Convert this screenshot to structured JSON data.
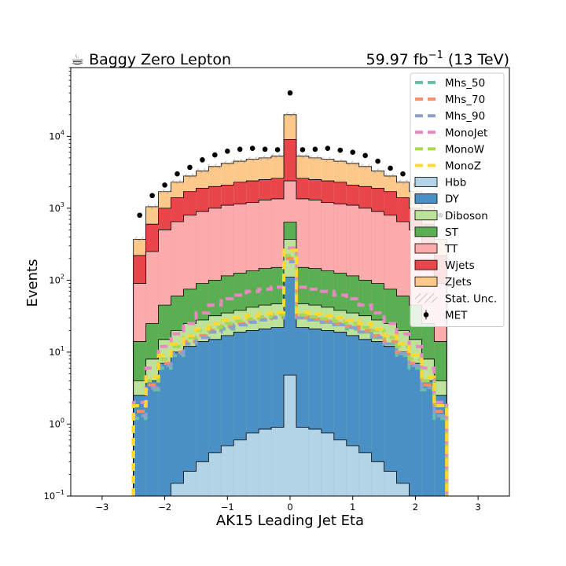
{
  "header": {
    "left_title": "☕ Baggy Zero Lepton",
    "right_title_value": "59.97 fb",
    "right_title_exp": "−1",
    "right_title_energy": " (13 TeV)"
  },
  "chart_data": {
    "type": "bar",
    "xlabel": "AK15 Leading Jet Eta",
    "ylabel": "Events",
    "xlim": [
      -3.5,
      3.5
    ],
    "ylim": [
      0.1,
      90000
    ],
    "yscale": "log",
    "x_ticks": [
      "−3",
      "−2",
      "−1",
      "0",
      "1",
      "2",
      "3"
    ],
    "y_ticks": [
      {
        "value": 0.1,
        "base": "10",
        "exp": "−1"
      },
      {
        "value": 1,
        "base": "10",
        "exp": "0"
      },
      {
        "value": 10,
        "base": "10",
        "exp": "1"
      },
      {
        "value": 100,
        "base": "10",
        "exp": "2"
      },
      {
        "value": 1000,
        "base": "10",
        "exp": "3"
      },
      {
        "value": 10000,
        "base": "10",
        "exp": "4"
      }
    ],
    "bin_edges": [
      -2.5,
      -2.3,
      -2.1,
      -1.9,
      -1.7,
      -1.5,
      -1.3,
      -1.1,
      -0.9,
      -0.7,
      -0.5,
      -0.3,
      -0.1,
      0.1,
      0.3,
      0.5,
      0.7,
      0.9,
      1.1,
      1.3,
      1.5,
      1.7,
      1.9,
      2.1,
      2.3,
      2.5
    ],
    "stack_order": [
      "Hbb",
      "DY",
      "Diboson",
      "ST",
      "TT",
      "Wjets",
      "ZJets"
    ],
    "stack_cumulative": {
      "Hbb": [
        0.1,
        0.1,
        0.1,
        0.15,
        0.22,
        0.3,
        0.4,
        0.5,
        0.6,
        0.75,
        0.85,
        0.9,
        4.8,
        0.9,
        0.85,
        0.75,
        0.6,
        0.5,
        0.4,
        0.3,
        0.22,
        0.15,
        0.1,
        0.1,
        0.1
      ],
      "DY": [
        2.5,
        4,
        7,
        10,
        12,
        14,
        15,
        17,
        19,
        20,
        21,
        22,
        110,
        22,
        21,
        20,
        19,
        17,
        15,
        14,
        12,
        10,
        7,
        4,
        2.5
      ],
      "Diboson": [
        4,
        8,
        15,
        20,
        25,
        28,
        32,
        35,
        38,
        42,
        45,
        47,
        370,
        47,
        45,
        42,
        38,
        35,
        32,
        28,
        25,
        20,
        15,
        8,
        4
      ],
      "ST": [
        14,
        25,
        45,
        60,
        75,
        90,
        100,
        115,
        125,
        135,
        145,
        150,
        640,
        150,
        145,
        135,
        125,
        115,
        100,
        90,
        75,
        60,
        45,
        25,
        14
      ],
      "TT": [
        90,
        250,
        500,
        650,
        800,
        900,
        1000,
        1100,
        1150,
        1200,
        1300,
        1350,
        2400,
        1350,
        1300,
        1200,
        1150,
        1100,
        1000,
        900,
        800,
        650,
        500,
        250,
        90
      ],
      "Wjets": [
        220,
        600,
        1000,
        1400,
        1700,
        1900,
        2000,
        2100,
        2300,
        2400,
        2500,
        2600,
        9000,
        2600,
        2500,
        2400,
        2300,
        2100,
        2000,
        1900,
        1700,
        1400,
        1000,
        600,
        220
      ],
      "ZJets": [
        370,
        1050,
        1700,
        2300,
        2800,
        3300,
        3800,
        4200,
        4500,
        4800,
        5000,
        5300,
        20000,
        5300,
        5000,
        4800,
        4500,
        4200,
        3800,
        3300,
        2800,
        2300,
        1700,
        1050,
        370
      ]
    },
    "stack_colors": {
      "Hbb": "#b3d4e6",
      "DY": "#4a90c4",
      "Diboson": "#bde39b",
      "ST": "#5aaf52",
      "TT": "#fbabac",
      "Wjets": "#e9464c",
      "ZJets": "#fdc98b"
    },
    "signal_series": [
      {
        "name": "Mhs_50",
        "color": "#66c2a5",
        "values": [
          1.2,
          3,
          6,
          9,
          13,
          16,
          19,
          21,
          24,
          26,
          28,
          30,
          200,
          30,
          28,
          26,
          24,
          21,
          19,
          16,
          13,
          9,
          6,
          3,
          1.2
        ]
      },
      {
        "name": "Mhs_70",
        "color": "#fc8d62",
        "values": [
          1.5,
          3.5,
          7,
          10,
          14,
          17,
          20,
          23,
          25,
          27,
          29,
          31,
          200,
          31,
          29,
          27,
          25,
          23,
          20,
          17,
          14,
          10,
          7,
          3.5,
          1.5
        ]
      },
      {
        "name": "Mhs_90",
        "color": "#8da0cb",
        "values": [
          1.3,
          3.2,
          6.5,
          9.5,
          13,
          16,
          19,
          22,
          24,
          26,
          28,
          30,
          180,
          30,
          28,
          26,
          24,
          22,
          19,
          16,
          13,
          9.5,
          6.5,
          3.2,
          1.3
        ]
      },
      {
        "name": "MonoJet",
        "color": "#e78ac3",
        "values": [
          2,
          6,
          12,
          18,
          25,
          35,
          45,
          55,
          62,
          70,
          75,
          80,
          280,
          80,
          75,
          70,
          62,
          55,
          45,
          35,
          25,
          18,
          12,
          6,
          2
        ]
      },
      {
        "name": "MonoW",
        "color": "#a6d854",
        "values": [
          1.8,
          4,
          8,
          12,
          16,
          20,
          22,
          25,
          27,
          29,
          31,
          33,
          220,
          33,
          31,
          29,
          27,
          25,
          22,
          20,
          16,
          12,
          8,
          4,
          1.8
        ]
      },
      {
        "name": "MonoZ",
        "color": "#ffd92f",
        "values": [
          1.8,
          4.5,
          9,
          13,
          17,
          21,
          25,
          28,
          30,
          32,
          34,
          36,
          260,
          36,
          34,
          32,
          30,
          28,
          25,
          21,
          17,
          13,
          9,
          4.5,
          1.8
        ]
      }
    ],
    "data_points": {
      "name": "MET",
      "x": [
        -2.4,
        -2.2,
        -2.0,
        -1.8,
        -1.6,
        -1.4,
        -1.2,
        -1.0,
        -0.8,
        -0.6,
        -0.4,
        -0.2,
        0.0,
        0.2,
        0.4,
        0.6,
        0.8,
        1.0,
        1.2,
        1.4,
        1.6,
        1.8,
        2.0,
        2.2,
        2.4
      ],
      "y": [
        800,
        1500,
        2100,
        3000,
        3700,
        4700,
        5500,
        6200,
        6600,
        6800,
        6600,
        6500,
        40000,
        6500,
        6600,
        6800,
        6400,
        6000,
        5400,
        4500,
        3600,
        3000,
        2100,
        1500,
        800
      ]
    },
    "legend_placement": "top-right",
    "legend": [
      {
        "label": "Mhs_50",
        "kind": "dash",
        "color": "#66c2a5"
      },
      {
        "label": "Mhs_70",
        "kind": "dash",
        "color": "#fc8d62"
      },
      {
        "label": "Mhs_90",
        "kind": "dash",
        "color": "#8da0cb"
      },
      {
        "label": "MonoJet",
        "kind": "dash",
        "color": "#e78ac3"
      },
      {
        "label": "MonoW",
        "kind": "dash",
        "color": "#a6d854"
      },
      {
        "label": "MonoZ",
        "kind": "dash",
        "color": "#ffd92f"
      },
      {
        "label": "Hbb",
        "kind": "box",
        "color": "#b3d4e6"
      },
      {
        "label": "DY",
        "kind": "box",
        "color": "#4a90c4"
      },
      {
        "label": "Diboson",
        "kind": "box",
        "color": "#bde39b"
      },
      {
        "label": "ST",
        "kind": "box",
        "color": "#5aaf52"
      },
      {
        "label": "TT",
        "kind": "box",
        "color": "#fbabac"
      },
      {
        "label": "Wjets",
        "kind": "box",
        "color": "#e9464c"
      },
      {
        "label": "ZJets",
        "kind": "box",
        "color": "#fdc98b"
      },
      {
        "label": "Stat. Unc.",
        "kind": "hatch",
        "color": "#aaaaaa"
      },
      {
        "label": "MET",
        "kind": "point",
        "color": "#000000"
      }
    ]
  }
}
